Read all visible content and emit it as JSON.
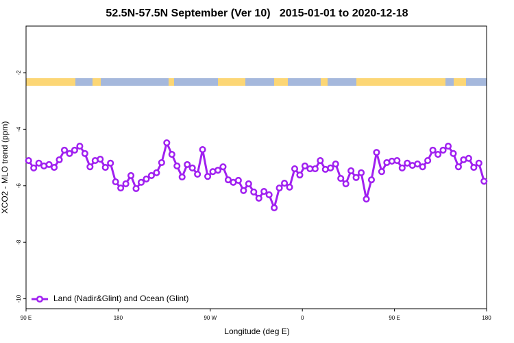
{
  "chart_data": {
    "type": "line",
    "title": "52.5N-57.5N September (Ver 10)   2015-01-01 to 2020-12-18",
    "x_label": "Longitude (deg E)",
    "y_label": "XCO2 - MLO trend (ppm)",
    "xlim": [
      90,
      540
    ],
    "ylim": [
      -10.35,
      -0.35
    ],
    "xticks": [
      {
        "value": 90,
        "label": "90 E"
      },
      180,
      {
        "value": 270,
        "label": "90 W"
      },
      {
        "value": 360,
        "label": "0"
      },
      {
        "value": 450,
        "label": "90 E"
      },
      {
        "value": 540,
        "label": "180"
      }
    ],
    "yticks": [
      -10,
      -8,
      -6,
      -4,
      -2
    ],
    "legend": "bottomleft",
    "x": [
      92.5,
      97.5,
      102.5,
      107.5,
      112.5,
      117.5,
      122.5,
      127.5,
      132.5,
      137.5,
      142.5,
      147.5,
      152.5,
      157.5,
      162.5,
      167.5,
      172.5,
      177.5,
      182.5,
      187.5,
      192.5,
      197.5,
      202.5,
      207.5,
      212.5,
      217.5,
      222.5,
      227.5,
      232.5,
      237.5,
      242.5,
      247.5,
      252.5,
      257.5,
      262.5,
      267.5,
      272.5,
      277.5,
      282.5,
      287.5,
      292.5,
      297.5,
      302.5,
      307.5,
      312.5,
      317.5,
      322.5,
      327.5,
      332.5,
      337.5,
      342.5,
      347.5,
      352.5,
      357.5,
      362.5,
      367.5,
      372.5,
      377.5,
      382.5,
      387.5,
      392.5,
      397.5,
      402.5,
      407.5,
      412.5,
      417.5,
      422.5,
      427.5,
      432.5,
      437.5,
      442.5,
      447.5,
      452.5,
      457.5,
      462.5,
      467.5,
      472.5,
      477.5,
      482.5,
      487.5,
      492.5,
      497.5,
      502.5,
      507.5,
      512.5,
      517.5,
      522.5,
      527.5,
      532.5,
      537.5
    ],
    "series": [
      {
        "name": "Land (Nadir&Glint) and Ocean (Glint)",
        "color": "#a020f0",
        "values": [
          -5.11,
          -5.37,
          -5.2,
          -5.3,
          -5.25,
          -5.35,
          -5.08,
          -4.74,
          -4.86,
          -4.74,
          -4.6,
          -4.86,
          -5.33,
          -5.11,
          -5.06,
          -5.35,
          -5.2,
          -5.86,
          -6.08,
          -5.93,
          -5.64,
          -6.1,
          -5.88,
          -5.76,
          -5.64,
          -5.54,
          -5.18,
          -4.48,
          -4.89,
          -5.3,
          -5.69,
          -5.25,
          -5.37,
          -5.59,
          -4.72,
          -5.67,
          -5.5,
          -5.45,
          -5.33,
          -5.79,
          -5.88,
          -5.81,
          -6.17,
          -5.93,
          -6.22,
          -6.44,
          -6.2,
          -6.32,
          -6.78,
          -6.08,
          -5.91,
          -6.05,
          -5.4,
          -5.62,
          -5.3,
          -5.4,
          -5.4,
          -5.11,
          -5.42,
          -5.37,
          -5.23,
          -5.74,
          -5.93,
          -5.47,
          -5.71,
          -5.54,
          -6.47,
          -5.79,
          -4.82,
          -5.5,
          -5.18,
          -5.13,
          -5.11,
          -5.37,
          -5.2,
          -5.28,
          -5.23,
          -5.33,
          -5.11,
          -4.74,
          -4.89,
          -4.74,
          -4.6,
          -4.86,
          -5.33,
          -5.08,
          -5.03,
          -5.35,
          -5.2,
          -5.84
        ]
      }
    ]
  }
}
